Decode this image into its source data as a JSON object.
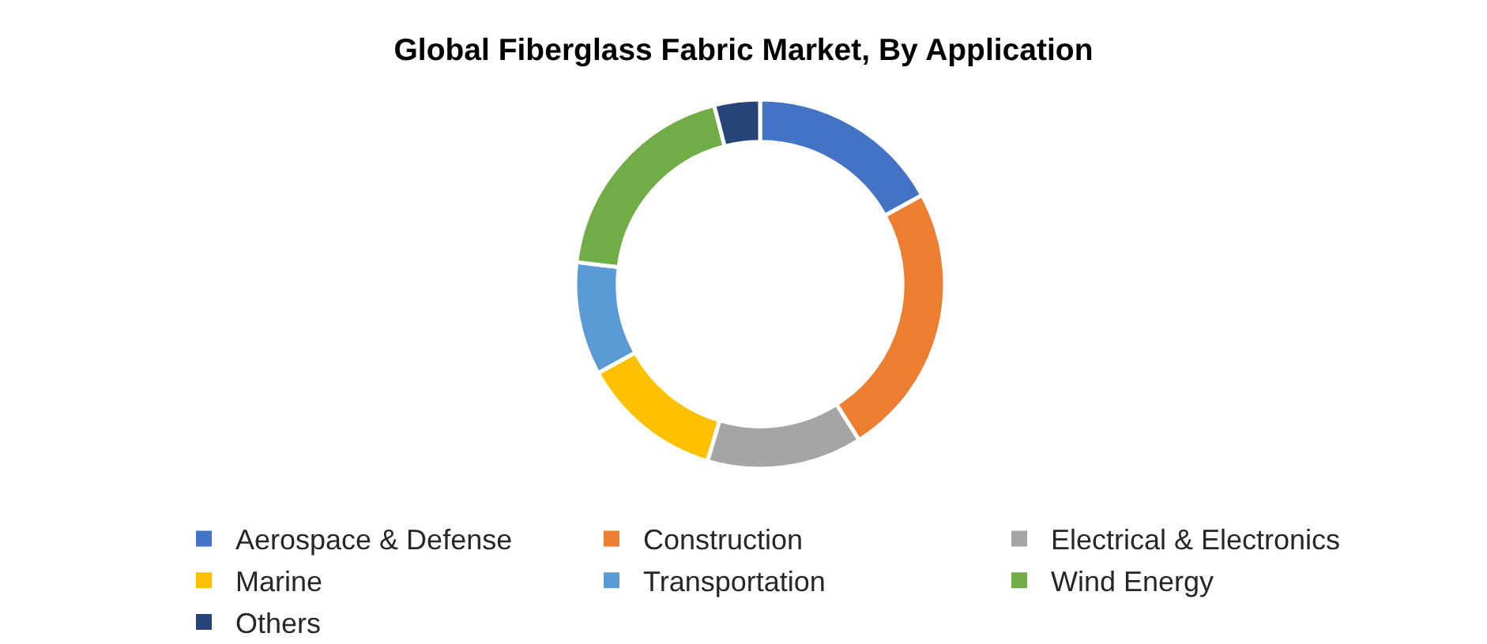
{
  "chart_data": {
    "type": "donut",
    "title": "Global Fiberglass Fabric Market, By Application",
    "categories": [
      "Aerospace & Defense",
      "Construction",
      "Electrical & Electronics",
      "Marine",
      "Transportation",
      "Wind Energy",
      "Others"
    ],
    "values": [
      17,
      24,
      13.6,
      12.4,
      9.9,
      19.1,
      4.0
    ],
    "colors": [
      "#4472c4",
      "#ed7d31",
      "#a5a5a5",
      "#ffc000",
      "#5b9bd5",
      "#70ad47",
      "#264478"
    ],
    "legend": "bottom"
  }
}
